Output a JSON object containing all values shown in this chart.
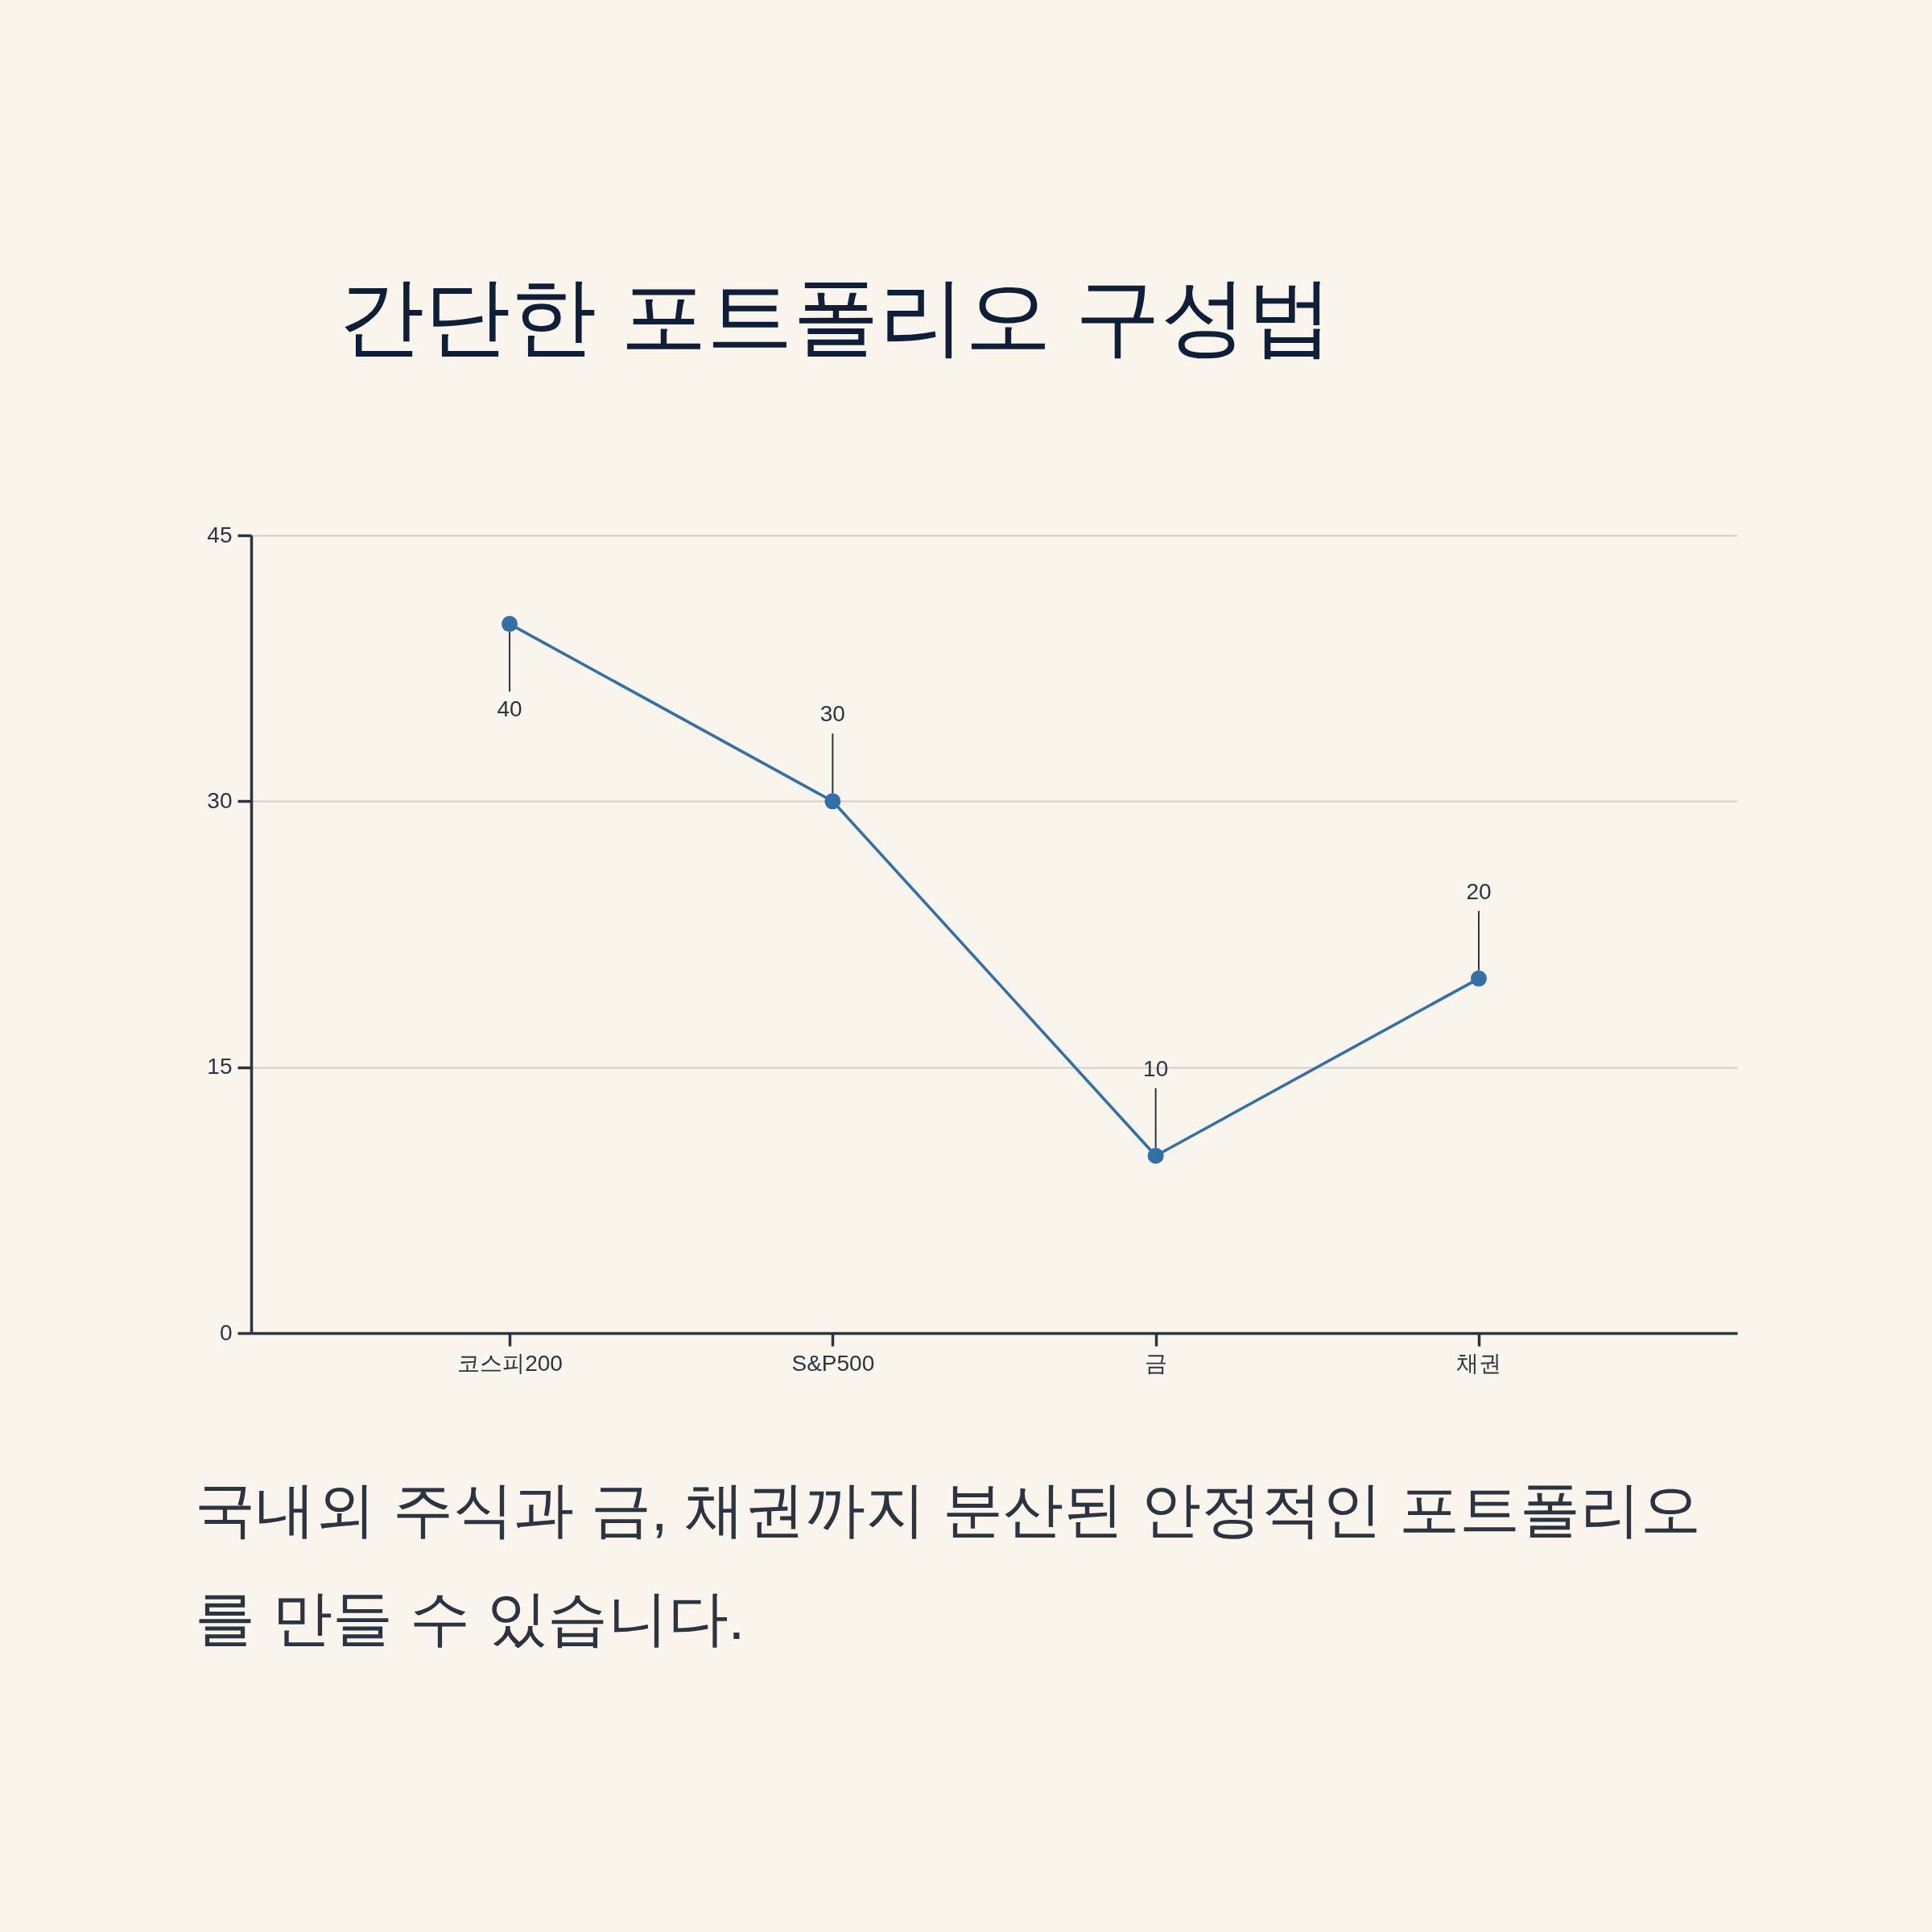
{
  "chart_data": {
    "type": "line",
    "title": "간단한 포트폴리오 구성법",
    "categories": [
      "코스피200",
      "S&P500",
      "금",
      "채권"
    ],
    "series": [
      {
        "color": "#3470a8",
        "values": [
          40,
          30,
          10,
          20
        ]
      }
    ],
    "ylim": [
      0,
      45
    ],
    "yticks": [
      0,
      15,
      30,
      45
    ],
    "grid": "y",
    "data_labels": true,
    "marker": "circle",
    "line_style": "solid",
    "annotations": [
      "국내외 주식과 금, 채권까지 분산된 안정적인 포트폴리오를 만들 수 있습니다."
    ]
  }
}
